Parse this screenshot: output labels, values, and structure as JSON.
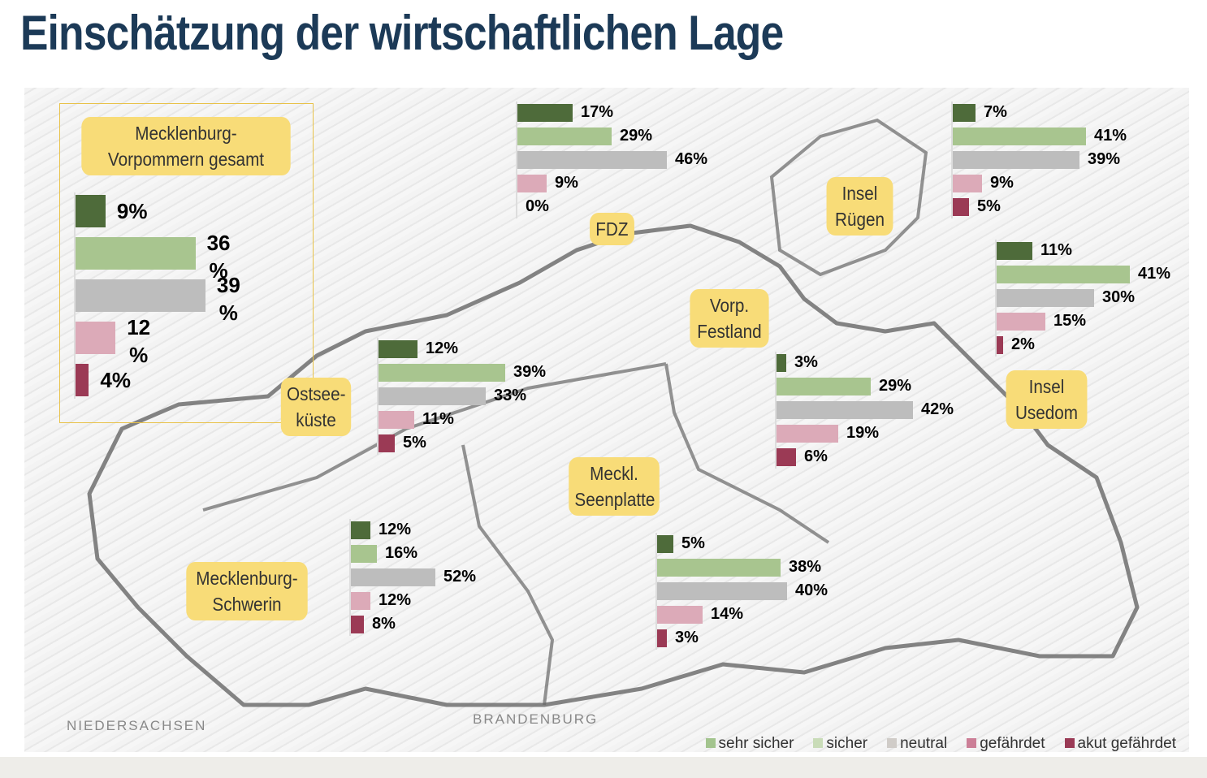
{
  "title": "Einschätzung der wirtschaftlichen Lage",
  "colors": {
    "sehr_sicher": "#4e6b3a",
    "sicher": "#a8c58f",
    "neutral": "#bdbdbd",
    "gefaehrdet": "#dcaab8",
    "akut_gefaehrdet": "#9b3a55"
  },
  "states": {
    "niedersachsen": "NIEDERSACHSEN",
    "brandenburg": "BRANDENBURG"
  },
  "legend": [
    {
      "label": "sehr sicher",
      "color": "#a3c48e"
    },
    {
      "label": "sicher",
      "color": "#c9dcb8"
    },
    {
      "label": "neutral",
      "color": "#d0ccc8"
    },
    {
      "label": "gefährdet",
      "color": "#cc7f97"
    },
    {
      "label": "akut gefährdet",
      "color": "#9a3a55"
    }
  ],
  "chart_data": {
    "type": "bar",
    "title": "Einschätzung der wirtschaftlichen Lage",
    "categories": [
      "sehr sicher",
      "sicher",
      "neutral",
      "gefährdet",
      "akut gefährdet"
    ],
    "unit": "%",
    "series": [
      {
        "name": "Mecklenburg-Vorpommern gesamt",
        "values": [
          9,
          36,
          39,
          12,
          4
        ],
        "value_labels": [
          "9%",
          "36\n%",
          "39\n%",
          "12\n%",
          "4%"
        ]
      },
      {
        "name": "FDZ",
        "values": [
          17,
          29,
          46,
          9,
          0
        ]
      },
      {
        "name": "Insel Rügen",
        "values": [
          7,
          41,
          39,
          9,
          5
        ]
      },
      {
        "name": "Insel Usedom",
        "values": [
          11,
          41,
          30,
          15,
          2
        ]
      },
      {
        "name": "Ostsee-küste",
        "values": [
          12,
          39,
          33,
          11,
          5
        ]
      },
      {
        "name": "Vorp. Festland",
        "values": [
          3,
          29,
          42,
          19,
          6
        ]
      },
      {
        "name": "Meckl. Seenplatte",
        "values": [
          5,
          38,
          40,
          14,
          3
        ]
      },
      {
        "name": "Mecklenburg-Schwerin",
        "values": [
          12,
          16,
          52,
          12,
          8
        ]
      }
    ]
  },
  "region_labels": {
    "mv": "Mecklenburg-Vorpommern gesamt",
    "fdz": "FDZ",
    "ruegen": "Insel Rügen",
    "usedom": "Insel Usedom",
    "ostsee": "Ostsee-küste",
    "vorp": "Vorp. Festland",
    "seenplatte": "Meckl. Seenplatte",
    "schwerin": "Mecklenburg-Schwerin"
  }
}
